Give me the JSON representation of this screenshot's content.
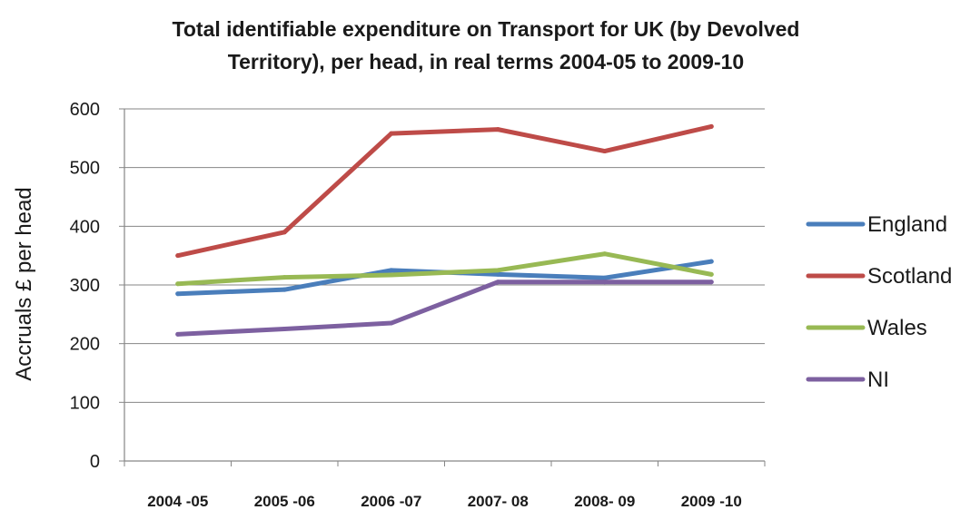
{
  "chart_data": {
    "type": "line",
    "title_lines": [
      "Total identifiable expenditure on Transport for UK (by Devolved",
      "Territory), per head, in real terms 2004-05 to 2009-10"
    ],
    "ylabel": "Accruals £ per head",
    "categories": [
      "2004 -05",
      "2005 -06",
      "2006 -07",
      "2007- 08",
      "2008- 09",
      "2009 -10"
    ],
    "ylim": [
      0,
      600
    ],
    "yticks": [
      0,
      100,
      200,
      300,
      400,
      500,
      600
    ],
    "grid": true,
    "legend_position": "right",
    "series": [
      {
        "name": "England",
        "color": "#4A7EBB",
        "values": [
          285,
          292,
          325,
          318,
          312,
          340
        ]
      },
      {
        "name": "Scotland",
        "color": "#BE4B48",
        "values": [
          350,
          390,
          558,
          565,
          528,
          570
        ]
      },
      {
        "name": "Wales",
        "color": "#98B954",
        "values": [
          302,
          313,
          317,
          325,
          353,
          318
        ]
      },
      {
        "name": "NI",
        "color": "#7D60A0",
        "values": [
          216,
          225,
          235,
          305,
          305,
          305
        ]
      }
    ]
  }
}
